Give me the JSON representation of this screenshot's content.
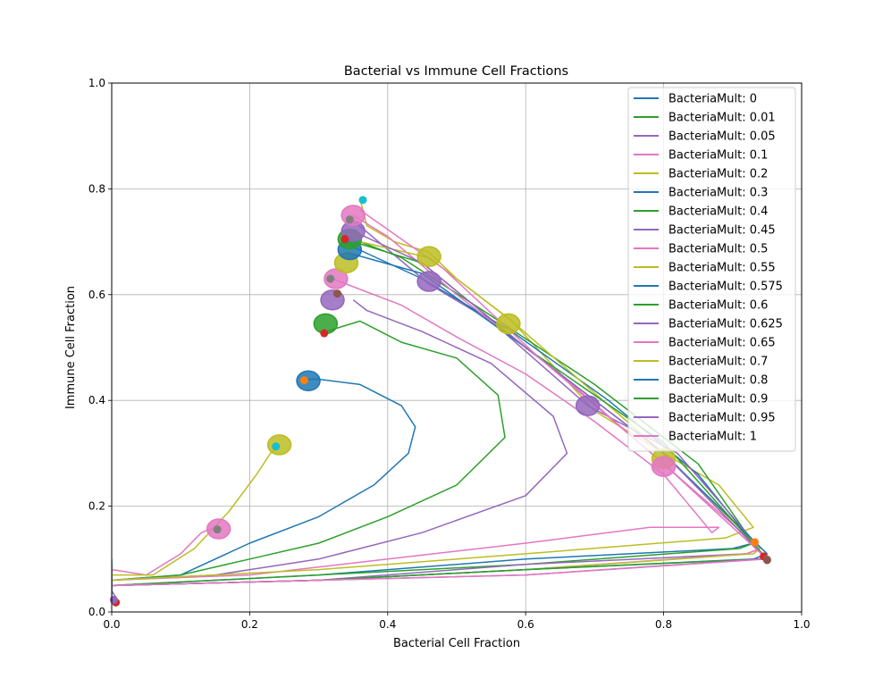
{
  "chart_data": {
    "type": "line",
    "title": "Bacterial vs Immune Cell Fractions",
    "xlabel": "Bacterial Cell Fraction",
    "ylabel": "Immune Cell Fraction",
    "xlim": [
      0,
      1
    ],
    "ylim": [
      0,
      1
    ],
    "xticks": [
      0,
      0.2,
      0.4,
      0.6,
      0.8,
      1
    ],
    "yticks": [
      0,
      0.2,
      0.4,
      0.6,
      0.8,
      1
    ],
    "xtick_labels": [
      "0.0",
      "0.2",
      "0.4",
      "0.6",
      "0.8",
      "1.0"
    ],
    "ytick_labels": [
      "0.0",
      "0.2",
      "0.4",
      "0.6",
      "0.8",
      "1.0"
    ],
    "grid": true,
    "legend_position": "top-right",
    "series": [
      {
        "name": "BacteriaMult: 0",
        "color": "#1f77b4",
        "x": [
          0.0,
          0.0,
          0.0
        ],
        "y": [
          0.1,
          0.06,
          0.02
        ]
      },
      {
        "name": "BacteriaMult: 0.01",
        "color": "#2ca02c",
        "x": [
          0.0,
          0.0,
          0.0
        ],
        "y": [
          0.09,
          0.05,
          0.02
        ]
      },
      {
        "name": "BacteriaMult: 0.05",
        "color": "#9467bd",
        "x": [
          0.0,
          0.0,
          0.01
        ],
        "y": [
          0.08,
          0.04,
          0.02
        ]
      },
      {
        "name": "BacteriaMult: 0.1",
        "color": "#e377c2",
        "x": [
          0.0,
          0.05,
          0.1,
          0.13,
          0.15
        ],
        "y": [
          0.08,
          0.07,
          0.11,
          0.15,
          0.16
        ]
      },
      {
        "name": "BacteriaMult: 0.2",
        "color": "#bcbd22",
        "x": [
          0.0,
          0.06,
          0.12,
          0.17,
          0.21,
          0.23,
          0.24
        ],
        "y": [
          0.07,
          0.07,
          0.12,
          0.19,
          0.26,
          0.3,
          0.31
        ]
      },
      {
        "name": "BacteriaMult: 0.3",
        "color": "#1f77b4",
        "x": [
          0.0,
          0.1,
          0.2,
          0.3,
          0.38,
          0.43,
          0.44,
          0.42,
          0.36,
          0.3,
          0.28
        ],
        "y": [
          0.06,
          0.07,
          0.13,
          0.18,
          0.24,
          0.3,
          0.35,
          0.39,
          0.43,
          0.44,
          0.44
        ]
      },
      {
        "name": "BacteriaMult: 0.4",
        "color": "#2ca02c",
        "x": [
          0.0,
          0.1,
          0.2,
          0.3,
          0.4,
          0.5,
          0.57,
          0.56,
          0.5,
          0.42,
          0.36,
          0.31
        ],
        "y": [
          0.06,
          0.07,
          0.1,
          0.13,
          0.18,
          0.24,
          0.33,
          0.41,
          0.48,
          0.51,
          0.55,
          0.53
        ]
      },
      {
        "name": "BacteriaMult: 0.45",
        "color": "#9467bd",
        "x": [
          0.0,
          0.15,
          0.3,
          0.45,
          0.6,
          0.66,
          0.64,
          0.55,
          0.45,
          0.37,
          0.35
        ],
        "y": [
          0.06,
          0.07,
          0.1,
          0.15,
          0.22,
          0.3,
          0.37,
          0.47,
          0.53,
          0.57,
          0.59
        ]
      },
      {
        "name": "BacteriaMult: 0.5",
        "color": "#e377c2",
        "x": [
          0.0,
          0.2,
          0.4,
          0.6,
          0.78,
          0.88,
          0.87,
          0.8,
          0.7,
          0.6,
          0.5,
          0.42,
          0.34,
          0.32
        ],
        "y": [
          0.06,
          0.07,
          0.1,
          0.13,
          0.16,
          0.16,
          0.15,
          0.26,
          0.36,
          0.45,
          0.52,
          0.58,
          0.62,
          0.63
        ]
      },
      {
        "name": "BacteriaMult: 0.55",
        "color": "#bcbd22",
        "x": [
          0.0,
          0.3,
          0.6,
          0.89,
          0.93,
          0.88,
          0.8,
          0.7,
          0.58,
          0.5,
          0.46,
          0.41,
          0.37,
          0.36
        ],
        "y": [
          0.06,
          0.08,
          0.11,
          0.14,
          0.16,
          0.24,
          0.3,
          0.38,
          0.55,
          0.63,
          0.68,
          0.7,
          0.73,
          0.78
        ]
      },
      {
        "name": "BacteriaMult: 0.575",
        "color": "#1f77b4",
        "x": [
          0.0,
          0.3,
          0.6,
          0.9,
          0.93,
          0.85,
          0.72,
          0.58,
          0.45,
          0.35
        ],
        "y": [
          0.05,
          0.07,
          0.1,
          0.12,
          0.13,
          0.26,
          0.4,
          0.53,
          0.63,
          0.69
        ]
      },
      {
        "name": "BacteriaMult: 0.6",
        "color": "#2ca02c",
        "x": [
          0.0,
          0.3,
          0.6,
          0.91,
          0.93,
          0.85,
          0.7,
          0.55,
          0.42,
          0.34
        ],
        "y": [
          0.05,
          0.07,
          0.09,
          0.12,
          0.13,
          0.28,
          0.43,
          0.56,
          0.67,
          0.71
        ]
      },
      {
        "name": "BacteriaMult: 0.625",
        "color": "#9467bd",
        "x": [
          0.0,
          0.3,
          0.6,
          0.92,
          0.94,
          0.82,
          0.69,
          0.55,
          0.46,
          0.35
        ],
        "y": [
          0.05,
          0.06,
          0.09,
          0.11,
          0.12,
          0.3,
          0.39,
          0.55,
          0.62,
          0.74
        ]
      },
      {
        "name": "BacteriaMult: 0.65",
        "color": "#e377c2",
        "x": [
          0.0,
          0.3,
          0.6,
          0.92,
          0.94,
          0.8,
          0.65,
          0.5,
          0.4,
          0.35
        ],
        "y": [
          0.05,
          0.06,
          0.08,
          0.11,
          0.12,
          0.28,
          0.45,
          0.6,
          0.71,
          0.75
        ]
      },
      {
        "name": "BacteriaMult: 0.7",
        "color": "#bcbd22",
        "x": [
          0.0,
          0.3,
          0.6,
          0.93,
          0.94,
          0.8,
          0.58,
          0.46,
          0.36
        ],
        "y": [
          0.05,
          0.06,
          0.08,
          0.11,
          0.12,
          0.3,
          0.55,
          0.67,
          0.7
        ]
      },
      {
        "name": "BacteriaMult: 0.8",
        "color": "#1f77b4",
        "x": [
          0.0,
          0.3,
          0.6,
          0.93,
          0.95,
          0.8,
          0.6,
          0.45,
          0.34
        ],
        "y": [
          0.05,
          0.06,
          0.08,
          0.1,
          0.11,
          0.3,
          0.5,
          0.64,
          0.68
        ]
      },
      {
        "name": "BacteriaMult: 0.9",
        "color": "#2ca02c",
        "x": [
          0.0,
          0.3,
          0.6,
          0.94,
          0.95,
          0.8,
          0.6,
          0.45,
          0.35
        ],
        "y": [
          0.05,
          0.06,
          0.08,
          0.1,
          0.1,
          0.32,
          0.5,
          0.66,
          0.7
        ]
      },
      {
        "name": "BacteriaMult: 0.95",
        "color": "#9467bd",
        "x": [
          0.0,
          0.3,
          0.6,
          0.94,
          0.95,
          0.8,
          0.6,
          0.45,
          0.35
        ],
        "y": [
          0.05,
          0.06,
          0.07,
          0.1,
          0.1,
          0.3,
          0.5,
          0.66,
          0.72
        ]
      },
      {
        "name": "BacteriaMult: 1",
        "color": "#e377c2",
        "x": [
          0.0,
          0.3,
          0.6,
          0.95,
          0.95,
          0.8,
          0.62,
          0.48,
          0.36
        ],
        "y": [
          0.05,
          0.06,
          0.07,
          0.1,
          0.1,
          0.28,
          0.48,
          0.65,
          0.76
        ]
      }
    ],
    "clusters": [
      {
        "x": 0.155,
        "y": 0.157,
        "color": "#e377c2"
      },
      {
        "x": 0.243,
        "y": 0.316,
        "color": "#bcbd22"
      },
      {
        "x": 0.285,
        "y": 0.437,
        "color": "#1f77b4"
      },
      {
        "x": 0.31,
        "y": 0.545,
        "color": "#2ca02c"
      },
      {
        "x": 0.32,
        "y": 0.59,
        "color": "#9467bd"
      },
      {
        "x": 0.325,
        "y": 0.63,
        "color": "#e377c2"
      },
      {
        "x": 0.34,
        "y": 0.66,
        "color": "#bcbd22"
      },
      {
        "x": 0.345,
        "y": 0.685,
        "color": "#1f77b4"
      },
      {
        "x": 0.345,
        "y": 0.705,
        "color": "#2ca02c"
      },
      {
        "x": 0.35,
        "y": 0.72,
        "color": "#9467bd"
      },
      {
        "x": 0.35,
        "y": 0.75,
        "color": "#e377c2"
      },
      {
        "x": 0.46,
        "y": 0.672,
        "color": "#bcbd22"
      },
      {
        "x": 0.46,
        "y": 0.625,
        "color": "#9467bd"
      },
      {
        "x": 0.575,
        "y": 0.545,
        "color": "#bcbd22"
      },
      {
        "x": 0.69,
        "y": 0.39,
        "color": "#9467bd"
      },
      {
        "x": 0.8,
        "y": 0.29,
        "color": "#bcbd22"
      },
      {
        "x": 0.8,
        "y": 0.275,
        "color": "#e377c2"
      }
    ],
    "markers": [
      {
        "x": 0.153,
        "y": 0.156,
        "color": "#7f7f7f"
      },
      {
        "x": 0.238,
        "y": 0.313,
        "color": "#17becf"
      },
      {
        "x": 0.279,
        "y": 0.438,
        "color": "#ff7f0e"
      },
      {
        "x": 0.308,
        "y": 0.527,
        "color": "#d62728"
      },
      {
        "x": 0.327,
        "y": 0.602,
        "color": "#8c564b"
      },
      {
        "x": 0.317,
        "y": 0.63,
        "color": "#7f7f7f"
      },
      {
        "x": 0.345,
        "y": 0.742,
        "color": "#7f7f7f"
      },
      {
        "x": 0.364,
        "y": 0.779,
        "color": "#17becf"
      },
      {
        "x": 0.338,
        "y": 0.705,
        "color": "#d62728"
      },
      {
        "x": 0.006,
        "y": 0.018,
        "color": "#d62728"
      },
      {
        "x": 0.003,
        "y": 0.023,
        "color": "#9467bd"
      },
      {
        "x": 0.932,
        "y": 0.132,
        "color": "#ff7f0e"
      },
      {
        "x": 0.945,
        "y": 0.105,
        "color": "#d62728"
      },
      {
        "x": 0.95,
        "y": 0.099,
        "color": "#7f7f7f"
      },
      {
        "x": 0.95,
        "y": 0.098,
        "color": "#8c564b"
      }
    ]
  }
}
